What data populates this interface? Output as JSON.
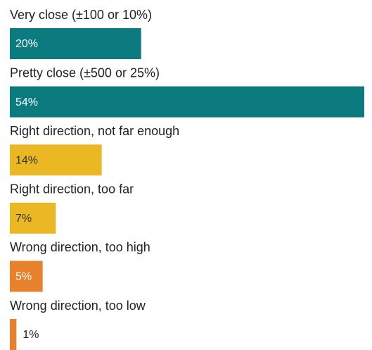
{
  "chart_data": {
    "type": "bar",
    "orientation": "horizontal",
    "categories": [
      "Very close (±100 or 10%)",
      "Pretty close (±500 or 25%)",
      "Right direction, not far enough",
      "Right direction, too far",
      "Wrong direction, too high",
      "Wrong direction, too low"
    ],
    "values": [
      20,
      54,
      14,
      7,
      5,
      1
    ],
    "value_labels": [
      "20%",
      "54%",
      "14%",
      "7%",
      "5%",
      "1%"
    ],
    "colors": [
      "#0b7b80",
      "#0b7b80",
      "#ebb824",
      "#ebb824",
      "#e8812c",
      "#e8812c"
    ]
  }
}
